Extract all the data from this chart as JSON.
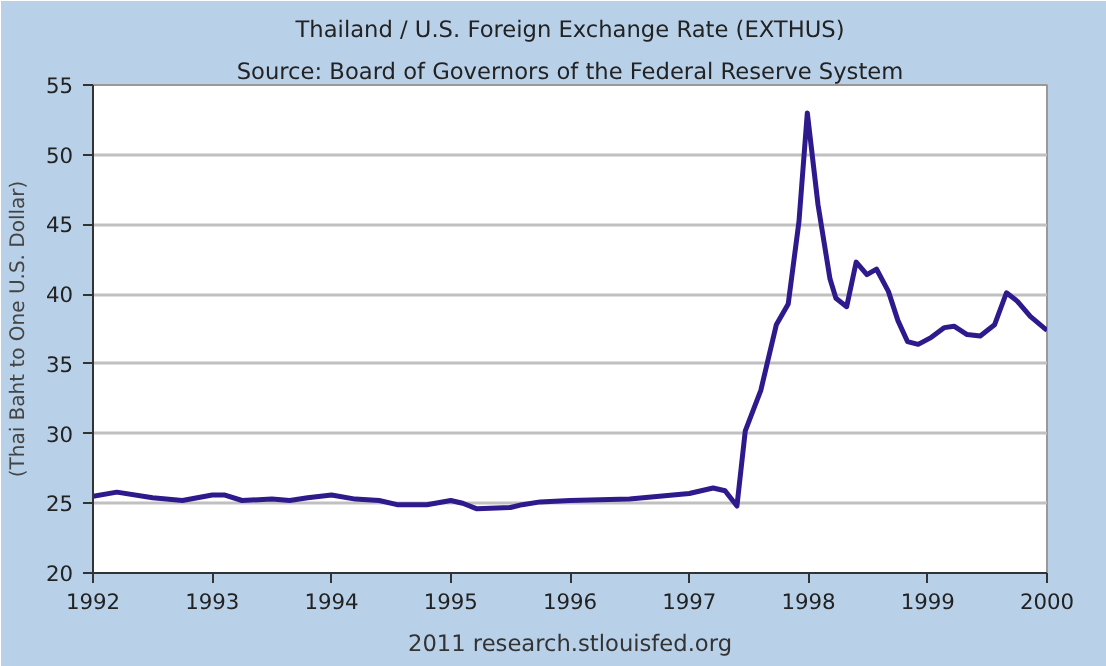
{
  "chart_data": {
    "type": "line",
    "title": "Thailand / U.S. Foreign Exchange Rate (EXTHUS)",
    "subtitle": "Source: Board of Governors of the Federal Reserve System",
    "ylabel": "(Thai Baht to One U.S. Dollar)",
    "annotations": [
      "2011 research.stlouisfed.org"
    ],
    "x": [
      1992.0,
      1992.2,
      1992.5,
      1992.75,
      1993.0,
      1993.1,
      1993.25,
      1993.5,
      1993.65,
      1993.8,
      1994.0,
      1994.2,
      1994.4,
      1994.55,
      1994.8,
      1995.0,
      1995.1,
      1995.22,
      1995.5,
      1995.6,
      1995.75,
      1996.0,
      1996.5,
      1997.0,
      1997.2,
      1997.3,
      1997.4,
      1997.47,
      1997.6,
      1997.73,
      1997.83,
      1997.92,
      1997.99,
      1998.08,
      1998.18,
      1998.23,
      1998.32,
      1998.4,
      1998.49,
      1998.57,
      1998.67,
      1998.75,
      1998.83,
      1998.92,
      1999.03,
      1999.14,
      1999.22,
      1999.33,
      1999.44,
      1999.56,
      1999.66,
      1999.75,
      1999.86,
      2000.0
    ],
    "series": [
      {
        "color": "#2e1a8c",
        "values": [
          25.5,
          25.8,
          25.4,
          25.2,
          25.6,
          25.6,
          25.2,
          25.3,
          25.2,
          25.4,
          25.6,
          25.3,
          25.2,
          24.9,
          24.9,
          25.2,
          25.0,
          24.6,
          24.7,
          24.9,
          25.1,
          25.2,
          25.3,
          25.7,
          26.1,
          25.9,
          24.8,
          30.2,
          33.1,
          37.8,
          39.3,
          45.2,
          53.0,
          46.4,
          41.1,
          39.7,
          39.1,
          42.3,
          41.4,
          41.8,
          40.2,
          38.1,
          36.6,
          36.4,
          36.9,
          37.6,
          37.7,
          37.1,
          37.0,
          37.8,
          40.1,
          39.5,
          38.4,
          37.4
        ]
      }
    ],
    "xlim": [
      1992,
      2000
    ],
    "xticks": [
      1992,
      1993,
      1994,
      1995,
      1996,
      1997,
      1998,
      1999,
      2000
    ],
    "ylim": [
      20,
      55
    ],
    "yticks": [
      20,
      25,
      30,
      35,
      40,
      45,
      50,
      55
    ],
    "grid": "y",
    "marker": "none",
    "line_style": "solid"
  }
}
